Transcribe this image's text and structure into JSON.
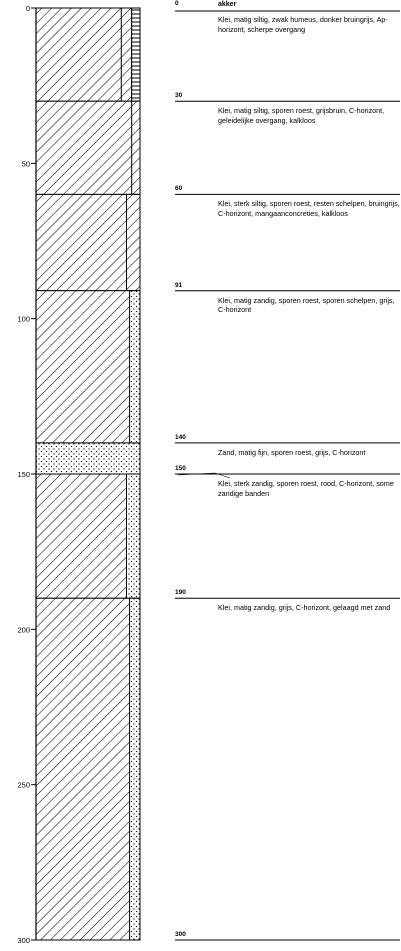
{
  "depth_axis": {
    "ticks": [
      0,
      50,
      100,
      150,
      200,
      250,
      300
    ],
    "tick_labels": [
      "0",
      "50",
      "100",
      "150",
      "200",
      "250",
      "300"
    ],
    "min": 0,
    "max": 300
  },
  "column": {
    "layers": [
      {
        "top": 0,
        "bottom": 30,
        "main": "clay",
        "side": [
          {
            "type": "clay",
            "from_frac": 0.82,
            "to_frac": 0.92
          },
          {
            "type": "humus",
            "from_frac": 0.92,
            "to_frac": 1.0
          }
        ]
      },
      {
        "top": 30,
        "bottom": 60,
        "main": "clay",
        "side": [
          {
            "type": "clay",
            "from_frac": 0.92,
            "to_frac": 1.0
          }
        ]
      },
      {
        "top": 60,
        "bottom": 91,
        "main": "clay",
        "side": [
          {
            "type": "clay",
            "from_frac": 0.87,
            "to_frac": 1.0
          }
        ]
      },
      {
        "top": 91,
        "bottom": 140,
        "main": "clay",
        "side": [
          {
            "type": "sand",
            "from_frac": 0.9,
            "to_frac": 1.0
          }
        ]
      },
      {
        "top": 140,
        "bottom": 150,
        "main": "sand",
        "side": []
      },
      {
        "top": 150,
        "bottom": 190,
        "main": "clay",
        "side": [
          {
            "type": "sand",
            "from_frac": 0.87,
            "to_frac": 1.0
          }
        ]
      },
      {
        "top": 190,
        "bottom": 300,
        "main": "clay",
        "side": [
          {
            "type": "sand",
            "from_frac": 0.9,
            "to_frac": 1.0
          }
        ]
      }
    ]
  },
  "header_label": "akker",
  "descriptions": [
    {
      "depth": 0,
      "marker": "0",
      "text": "Klei, matig siltig, zwak humeus, donker bruingrijs, Ap-horizont, scherpe overgang"
    },
    {
      "depth": 30,
      "marker": "30",
      "text": "Klei, matig siltig, sporen roest, grijsbruin, C-horizont, geleidelijke overgang, kalkloos"
    },
    {
      "depth": 60,
      "marker": "60",
      "text": "Klei, sterk siltig, sporen roest, resten schelpen, bruingrijs, C-horizont, mangaanconcreties, kalkloos"
    },
    {
      "depth": 91,
      "marker": "91",
      "text": "Klei, matig zandig, sporen roest, sporen schelpen, grijs, C-horizont"
    },
    {
      "depth": 140,
      "marker": "140",
      "text": "Zand, matig fijn, sporen roest, grijs, C-horizont"
    },
    {
      "depth": 150,
      "marker": "150",
      "text": "Klei, sterk zandig, sporen roest, rood, C-horizont, some zandige banden"
    },
    {
      "depth": 190,
      "marker": "190",
      "text": "Klei, matig zandig, grijs, C-horizont, gelaagd met zand"
    },
    {
      "depth": 300,
      "marker": "300",
      "text": ""
    }
  ]
}
